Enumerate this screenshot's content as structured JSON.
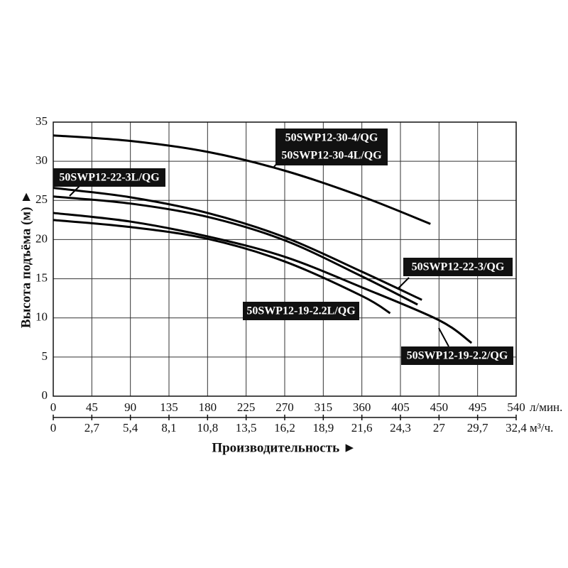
{
  "chart_data": {
    "type": "line",
    "ylabel": "Высота подъёма (м) ►",
    "xlabel": "Производительность ►",
    "xunit": "л/мин.",
    "x2unit": "м³/ч.",
    "xlim": [
      0,
      540
    ],
    "xticks": [
      0,
      45,
      90,
      135,
      180,
      225,
      270,
      315,
      360,
      405,
      450,
      495,
      540
    ],
    "x2lim": [
      0,
      32.4
    ],
    "x2ticks": [
      0,
      {
        "value": 2.7,
        "label": "2,7"
      },
      {
        "value": 5.4,
        "label": "5,4"
      },
      {
        "value": 8.1,
        "label": "8,1"
      },
      {
        "value": 10.8,
        "label": "10,8"
      },
      {
        "value": 13.5,
        "label": "13,5"
      },
      {
        "value": 16.2,
        "label": "16,2"
      },
      {
        "value": 18.9,
        "label": "18,9"
      },
      {
        "value": 21.6,
        "label": "21,6"
      },
      {
        "value": 24.3,
        "label": "24,3"
      },
      27,
      {
        "value": 29.7,
        "label": "29,7"
      },
      {
        "value": 32.4,
        "label": "32,4"
      }
    ],
    "ylim": [
      0,
      35
    ],
    "yticks": [
      0,
      5,
      10,
      15,
      20,
      25,
      30,
      35
    ],
    "grid": true,
    "series": [
      {
        "name": "50SWP12-30-4/QG",
        "name2": "50SWP12-30-4L/QG",
        "color": "#000000",
        "x": [
          0,
          90,
          180,
          270,
          360,
          440
        ],
        "values": [
          33.3,
          32.6,
          31.2,
          28.8,
          25.5,
          22.0
        ]
      },
      {
        "name": "50SWP12-22-3L/QG",
        "color": "#000000",
        "x": [
          0,
          90,
          180,
          270,
          360,
          430
        ],
        "values": [
          26.6,
          25.4,
          23.4,
          20.3,
          15.9,
          12.3
        ]
      },
      {
        "name": "50SWP12-22-3/QG",
        "color": "#000000",
        "x": [
          0,
          90,
          180,
          270,
          360,
          425
        ],
        "values": [
          25.5,
          24.6,
          22.9,
          19.9,
          15.3,
          11.7
        ]
      },
      {
        "name": "50SWP12-19-2.2/QG",
        "color": "#000000",
        "x": [
          0,
          90,
          180,
          270,
          360,
          450,
          488
        ],
        "values": [
          23.4,
          22.3,
          20.4,
          17.8,
          13.9,
          9.7,
          6.8
        ]
      },
      {
        "name": "50SWP12-19-2.2L/QG",
        "color": "#000000",
        "x": [
          0,
          90,
          180,
          270,
          360,
          393
        ],
        "values": [
          22.5,
          21.6,
          20.1,
          17.2,
          12.8,
          10.6
        ]
      }
    ]
  }
}
